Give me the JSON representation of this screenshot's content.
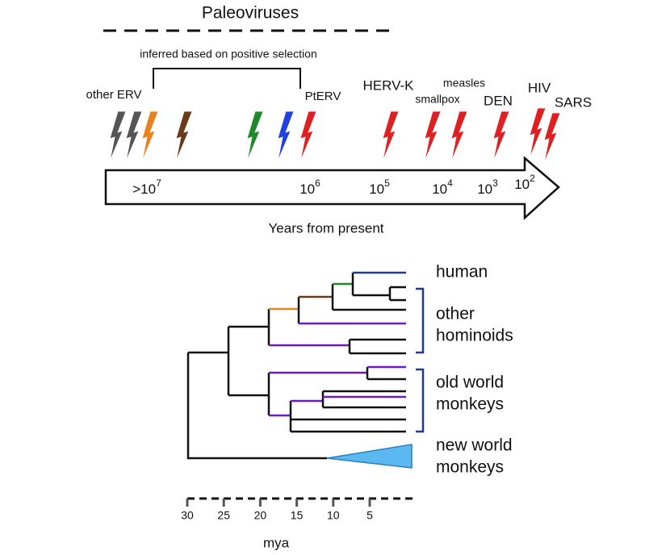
{
  "header": {
    "title": "Paleoviruses",
    "bracket_label": "inferred based on positive selection"
  },
  "viruses": [
    "other ERV",
    "PtERV",
    "HERV-K",
    "measles",
    "smallpox",
    "DEN",
    "HIV",
    "SARS"
  ],
  "timeline": {
    "ticks": [
      {
        "base": ">10",
        "exp": "7"
      },
      {
        "base": "10",
        "exp": "6"
      },
      {
        "base": "10",
        "exp": "5"
      },
      {
        "base": "10",
        "exp": "4"
      },
      {
        "base": "10",
        "exp": "3"
      },
      {
        "base": "10",
        "exp": "2"
      }
    ],
    "label": "Years from present"
  },
  "tree": {
    "clades": [
      {
        "lines": [
          "human"
        ]
      },
      {
        "lines": [
          "other",
          "hominoids"
        ]
      },
      {
        "lines": [
          "old world",
          "monkeys"
        ]
      },
      {
        "lines": [
          "new world",
          "monkeys"
        ]
      }
    ]
  },
  "scale": {
    "ticks": [
      30,
      25,
      20,
      15,
      10,
      5
    ],
    "label": "mya"
  }
}
